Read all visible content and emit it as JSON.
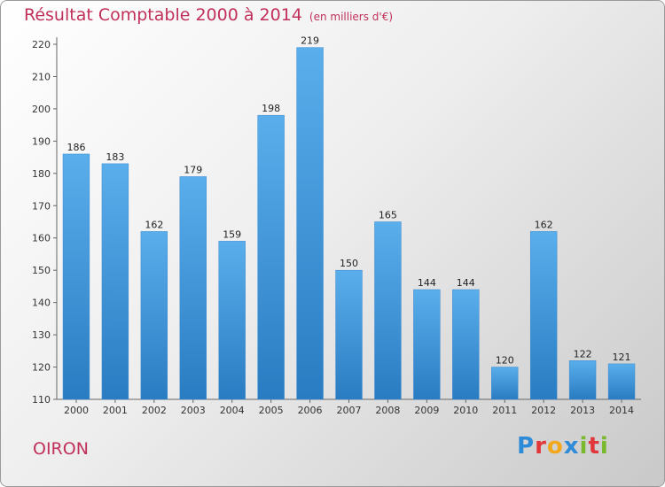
{
  "chart_title": "Résultat Comptable 2000 à 2014",
  "chart_subtitle": "(en milliers d'€)",
  "commune": "OIRON",
  "logo_letters": [
    {
      "ch": "P",
      "color": "#2e8bd8"
    },
    {
      "ch": "r",
      "color": "#e2373a"
    },
    {
      "ch": "o",
      "color": "#f2a81d"
    },
    {
      "ch": "x",
      "color": "#2e8bd8"
    },
    {
      "ch": "i",
      "color": "#7ab82e"
    },
    {
      "ch": "t",
      "color": "#e2373a"
    },
    {
      "ch": "i",
      "color": "#7ab82e"
    }
  ],
  "chart_data": {
    "type": "bar",
    "title": "Résultat Comptable 2000 à 2014",
    "subtitle": "(en milliers d'€)",
    "categories": [
      "2000",
      "2001",
      "2002",
      "2003",
      "2004",
      "2005",
      "2006",
      "2007",
      "2008",
      "2009",
      "2010",
      "2011",
      "2012",
      "2013",
      "2014"
    ],
    "values": [
      186,
      183,
      162,
      179,
      159,
      198,
      219,
      150,
      165,
      144,
      144,
      120,
      162,
      122,
      121
    ],
    "ylim": [
      110,
      220
    ],
    "yticks": [
      110,
      120,
      130,
      140,
      150,
      160,
      170,
      180,
      190,
      200,
      210,
      220
    ],
    "grid": false,
    "legend": "none",
    "bar_color": "#4f9fe0"
  }
}
